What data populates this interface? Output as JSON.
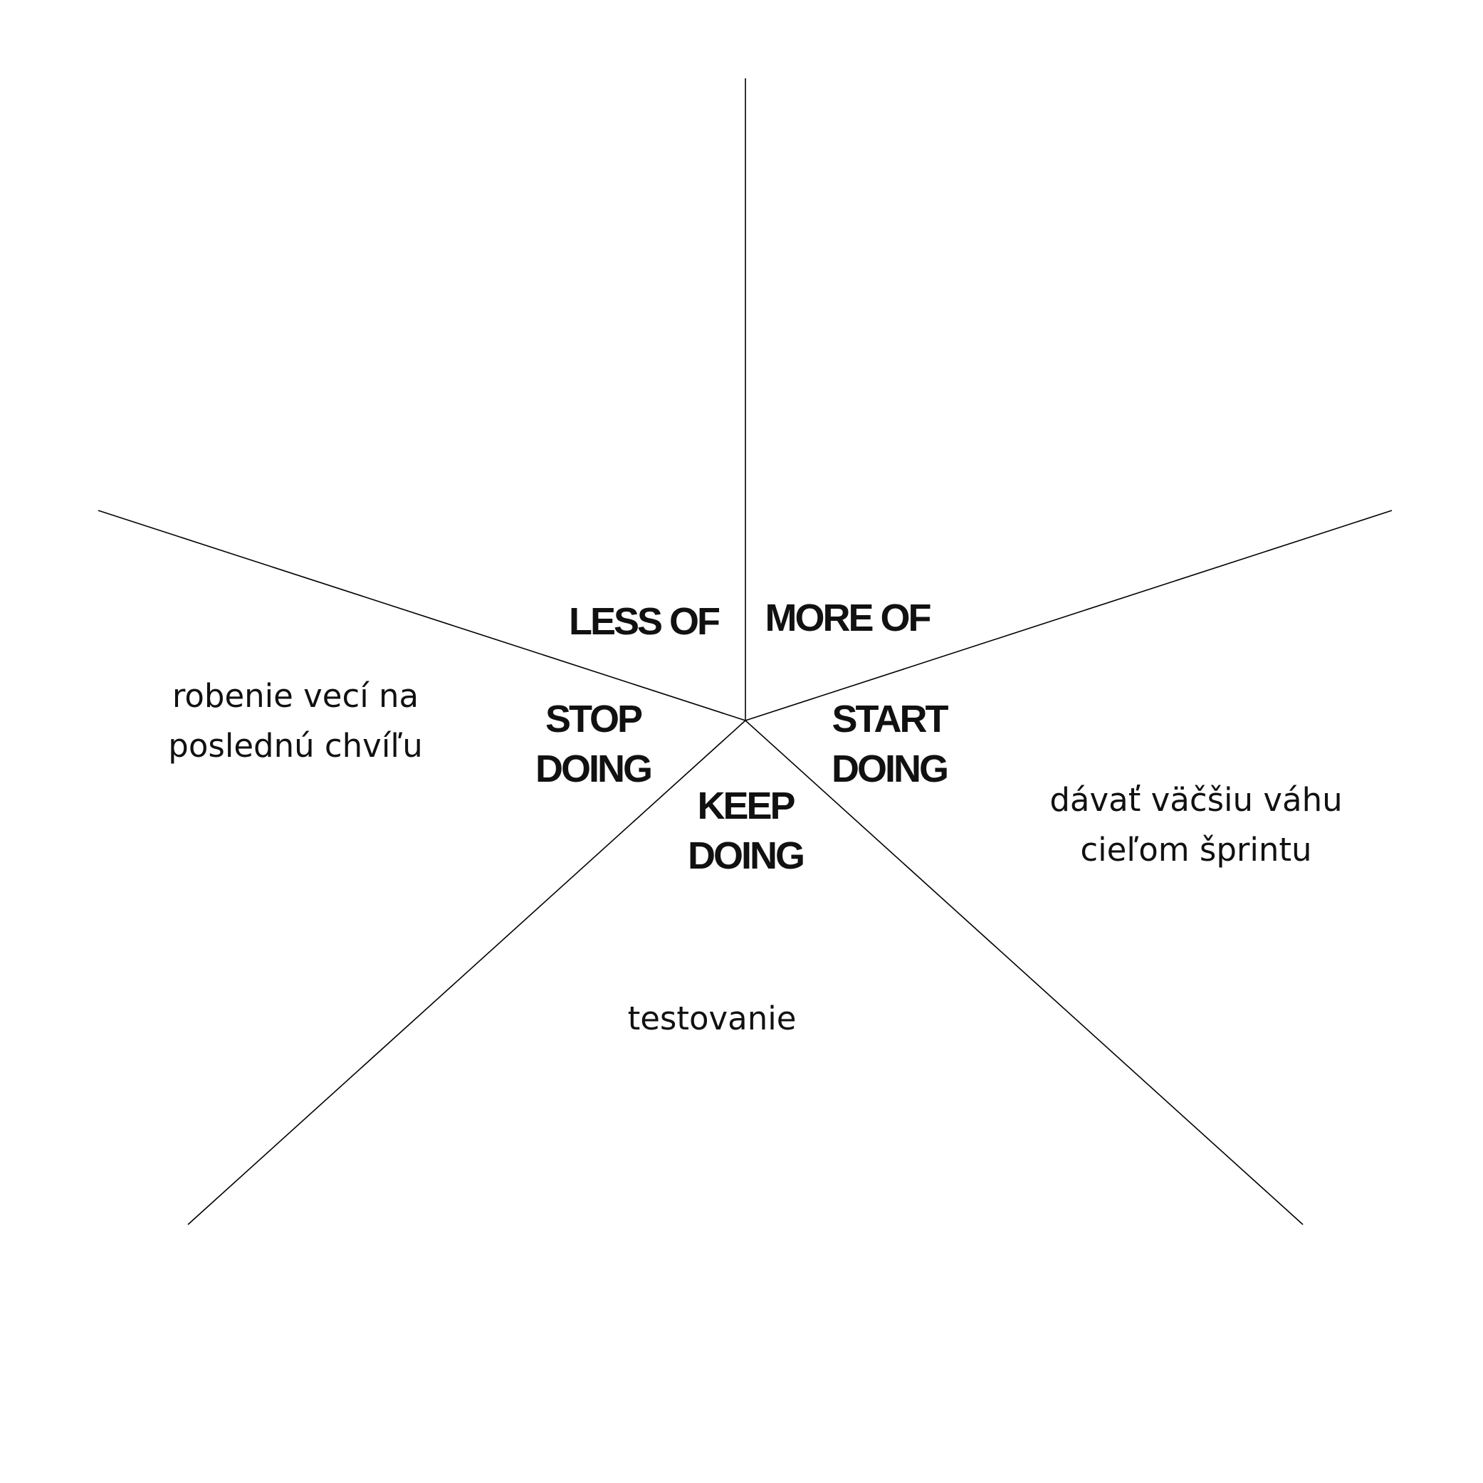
{
  "sections": {
    "less_of": {
      "label": "LESS OF"
    },
    "more_of": {
      "label": "MORE OF"
    },
    "stop_doing": {
      "label_line1": "STOP",
      "label_line2": "DOING",
      "entry_line1": "robenie vecí na",
      "entry_line2": "poslednú chvíľu"
    },
    "start_doing": {
      "label_line1": "START",
      "label_line2": "DOING",
      "entry_line1": "dávať väčšiu váhu",
      "entry_line2": "cieľom šprintu"
    },
    "keep_doing": {
      "label_line1": "KEEP",
      "label_line2": "DOING",
      "entry": "testovanie"
    }
  },
  "colors": {
    "line": "#000000",
    "text": "#111111",
    "background": "#ffffff"
  }
}
